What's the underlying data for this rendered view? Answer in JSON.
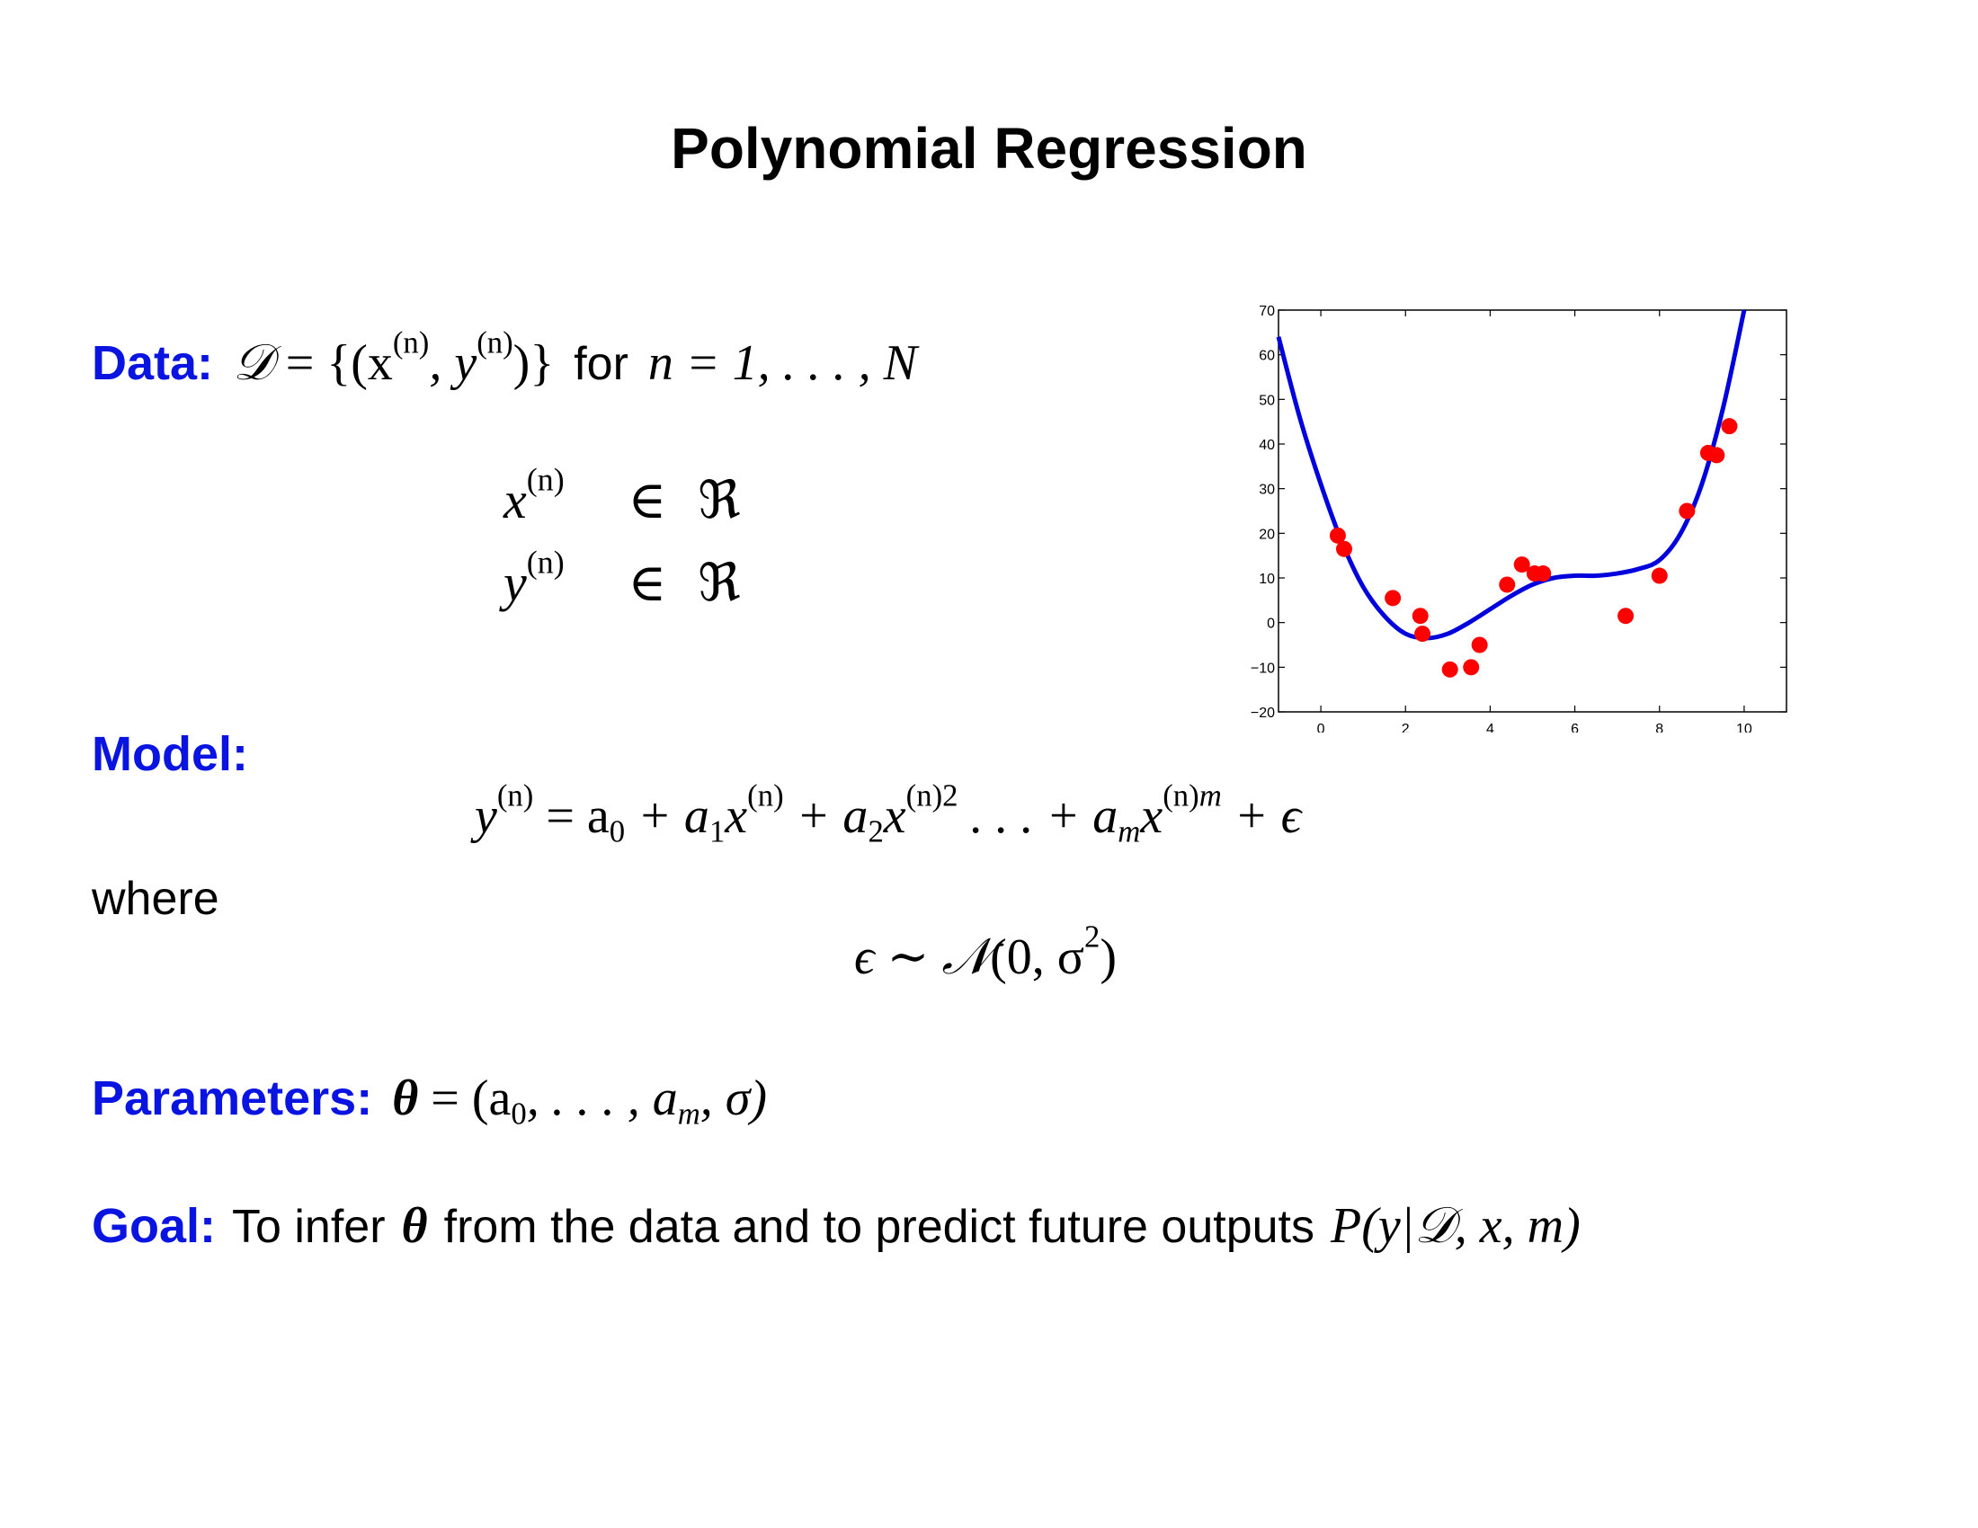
{
  "slide": {
    "title": "Polynomial Regression"
  },
  "data_section": {
    "label": "Data:",
    "set_lhs": "𝒟",
    "set_eq": "= {(x",
    "set_sup1": "(n)",
    "set_mid": ", y",
    "set_sup2": "(n)",
    "set_close": ")}",
    "for_word": "for",
    "range": "n = 1, . . . , N",
    "x_var": "x",
    "x_sup": "(n)",
    "y_var": "y",
    "y_sup": "(n)",
    "member": "∈",
    "reals": "ℜ"
  },
  "model_section": {
    "label": "Model:",
    "eq_y": "y",
    "eq_y_sup": "(n)",
    "eq_part1": "= a",
    "eq_sub0": "0",
    "eq_part2": " + a",
    "eq_sub1": "1",
    "eq_part3": "x",
    "eq_sup_n1": "(n)",
    "eq_part4": " + a",
    "eq_sub2": "2",
    "eq_part5": "x",
    "eq_sup_n2": "(n)",
    "eq_pow2": "2",
    "eq_part6": " . . . + a",
    "eq_subm": "m",
    "eq_part7": "x",
    "eq_sup_nm": "(n)",
    "eq_powm": "m",
    "eq_part8": " + ϵ",
    "where_word": "where",
    "noise_lhs": "ϵ ∼ ",
    "noise_cal": "𝒩",
    "noise_rhs": "(0, σ",
    "noise_pow": "2",
    "noise_close": ")"
  },
  "parameters_section": {
    "label": "Parameters:",
    "theta": "θ",
    "eq": " = (a",
    "sub0": "0",
    "mid": ", . . . , a",
    "subm": "m",
    "end": ", σ)"
  },
  "goal_section": {
    "label": "Goal:",
    "text1": "To infer",
    "theta": "θ",
    "text2": "from the data and to predict future outputs",
    "expr": "P(y|𝒟, x, m)"
  },
  "chart_data": {
    "type": "scatter",
    "x_ticks": [
      0,
      2,
      4,
      6,
      8,
      10
    ],
    "y_ticks": [
      -20,
      -10,
      0,
      10,
      20,
      30,
      40,
      50,
      60,
      70
    ],
    "y_tick_labels": [
      "−20",
      "−10",
      "0",
      "10",
      "20",
      "30",
      "40",
      "50",
      "60",
      "70"
    ],
    "xlim": [
      -1,
      11
    ],
    "ylim": [
      -20,
      70
    ],
    "grid": false,
    "points_color": "#ff0000",
    "curve_color": "#0000dd",
    "points": {
      "x": [
        0.4,
        0.55,
        1.7,
        2.35,
        2.4,
        3.05,
        3.55,
        3.75,
        4.4,
        4.75,
        5.05,
        5.25,
        7.2,
        8.0,
        8.65,
        9.15,
        9.35,
        9.65
      ],
      "y": [
        19.5,
        16.5,
        5.5,
        1.5,
        -2.5,
        -10.5,
        -10.0,
        -5.0,
        8.5,
        13.0,
        11.0,
        11.0,
        1.5,
        10.5,
        25.0,
        38.0,
        37.5,
        44.0
      ]
    },
    "curve": {
      "x": [
        -1.0,
        -0.5,
        0.0,
        0.5,
        1.0,
        1.5,
        2.0,
        2.5,
        3.0,
        3.5,
        4.0,
        4.5,
        5.0,
        5.5,
        6.0,
        6.5,
        7.0,
        7.5,
        8.0,
        8.5,
        9.0,
        9.5,
        10.0
      ],
      "y": [
        64,
        46,
        31,
        18,
        8,
        1.5,
        -2.5,
        -3.5,
        -2.5,
        0,
        3,
        6,
        8.5,
        10,
        10.5,
        10.5,
        11,
        12,
        14,
        20,
        31,
        48,
        70
      ]
    }
  }
}
